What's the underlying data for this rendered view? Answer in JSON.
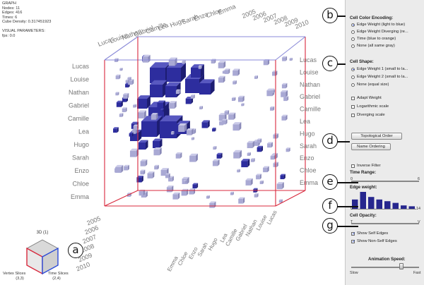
{
  "info": {
    "title": "GRAPH",
    "nodes": "Nodes: 11",
    "edges": "Edges: 416",
    "times": "Times: 6",
    "density": "Cube Density: 0.317451923",
    "vp_title": "VISUAL PARAMETERS:",
    "fps": "fps: 0.0"
  },
  "viz": {
    "names": [
      "Lucas",
      "Louise",
      "Nathan",
      "Gabriel",
      "Camille",
      "Lea",
      "Hugo",
      "Sarah",
      "Enzo",
      "Chloe",
      "Emma"
    ],
    "years": [
      "2005",
      "2006",
      "2007",
      "2008",
      "2009",
      "2010"
    ],
    "edge_color": "#d8283c",
    "cube_color": "#2a2aa0"
  },
  "minicube": {
    "title": "3D (1)",
    "vertex_label": "Vertex Slices",
    "vertex_value": "(3,3)",
    "time_label": "Time Slices",
    "time_value": "(2,4)",
    "callout": "a"
  },
  "panel": {
    "color_title": "Cell Color Encoding:",
    "color_options": [
      "Edge Weight (light to blue)",
      "Edge Weight Diverging (re...",
      "Time (blue to orange)",
      "None (all same gray)"
    ],
    "shape_title": "Cell Shape:",
    "shape_options": [
      "Edge Weight 1 (small to la...",
      "Edge Weight 2 (small to la...",
      "None (equal size)"
    ],
    "checks": [
      "Adapt Weight",
      "Logarithmic scale",
      "Diverging scale"
    ],
    "topo_button": "Topological Order",
    "name_button": "Name Ordering",
    "inverse_filter": "Inverse Filter",
    "time_range": "Time Range:",
    "time_min": "0",
    "time_max": "6",
    "edge_weight": "Edge weight:",
    "ew_min": "0",
    "ew_max": "14",
    "histogram": [
      0.55,
      1.0,
      0.7,
      0.55,
      0.45,
      0.35,
      0.2,
      0.15
    ],
    "opacity": "Cell Opacity:",
    "op_min": "T",
    "op_max": "V",
    "self_edges": "Show Self Edges",
    "nonself_edges": "Show Non-Self Edges",
    "anim_speed": "Animation Speed:",
    "slow": "Slow",
    "fast": "Fast",
    "callouts": [
      "b",
      "c",
      "d",
      "e",
      "f",
      "g"
    ]
  }
}
